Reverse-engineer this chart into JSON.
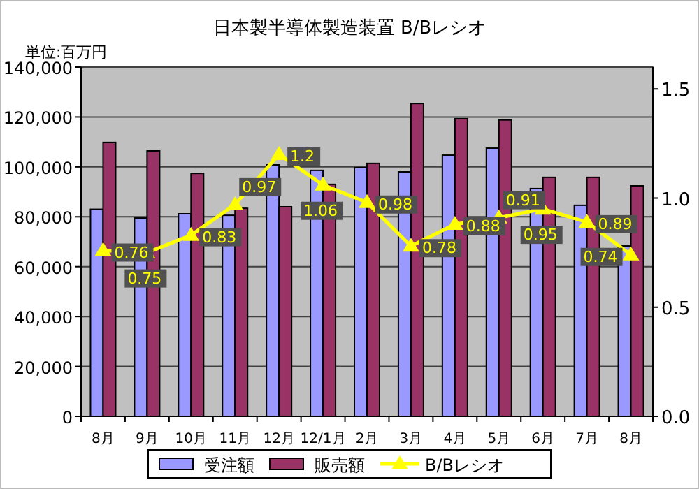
{
  "chart_data": {
    "type": "bar",
    "title": "日本製半導体製造装置 B/Bレシオ",
    "ylabel": "単位:百万円",
    "categories": [
      "8月",
      "9月",
      "10月",
      "11月",
      "12月",
      "12/1月",
      "2月",
      "3月",
      "4月",
      "5月",
      "6月",
      "7月",
      "8月"
    ],
    "series": [
      {
        "name": "受注額",
        "color": "#9999ff",
        "values": [
          83000,
          79500,
          81200,
          80600,
          100800,
          98600,
          99700,
          98000,
          104700,
          107500,
          91300,
          84600,
          68300
        ]
      },
      {
        "name": "販売額",
        "color": "#993366",
        "values": [
          109800,
          106400,
          97400,
          83400,
          84000,
          93000,
          101400,
          125400,
          119300,
          118800,
          95800,
          95800,
          92400
        ]
      },
      {
        "name": "B/Bレシオ",
        "type": "line",
        "axis": "y2",
        "color": "#ffff00",
        "marker": "triangle",
        "values": [
          0.76,
          0.75,
          0.83,
          0.97,
          1.2,
          1.06,
          0.98,
          0.78,
          0.88,
          0.91,
          0.95,
          0.89,
          0.74
        ],
        "value_labels": [
          "0.76",
          "0.75",
          "0.83",
          "0.97",
          "1.2",
          "1.06",
          "0.98",
          "0.78",
          "0.88",
          "0.91",
          "0.95",
          "0.89",
          "0.74"
        ]
      }
    ],
    "ylim": [
      0,
      140000
    ],
    "yticks": [
      {
        "value": 0,
        "label": "0"
      },
      {
        "value": 20000,
        "label": "20,000"
      },
      {
        "value": 40000,
        "label": "40,000"
      },
      {
        "value": 60000,
        "label": "60,000"
      },
      {
        "value": 80000,
        "label": "80,000"
      },
      {
        "value": 100000,
        "label": "100,000"
      },
      {
        "value": 120000,
        "label": "120,000"
      },
      {
        "value": 140000,
        "label": "140,000"
      }
    ],
    "y2lim": [
      0,
      1.6
    ],
    "y2ticks": [
      {
        "value": 0,
        "label": "0.0"
      },
      {
        "value": 0.5,
        "label": "0.5"
      },
      {
        "value": 1,
        "label": "1.0"
      },
      {
        "value": 1.5,
        "label": "1.5"
      }
    ],
    "grid": "y",
    "legend": "bottom"
  }
}
